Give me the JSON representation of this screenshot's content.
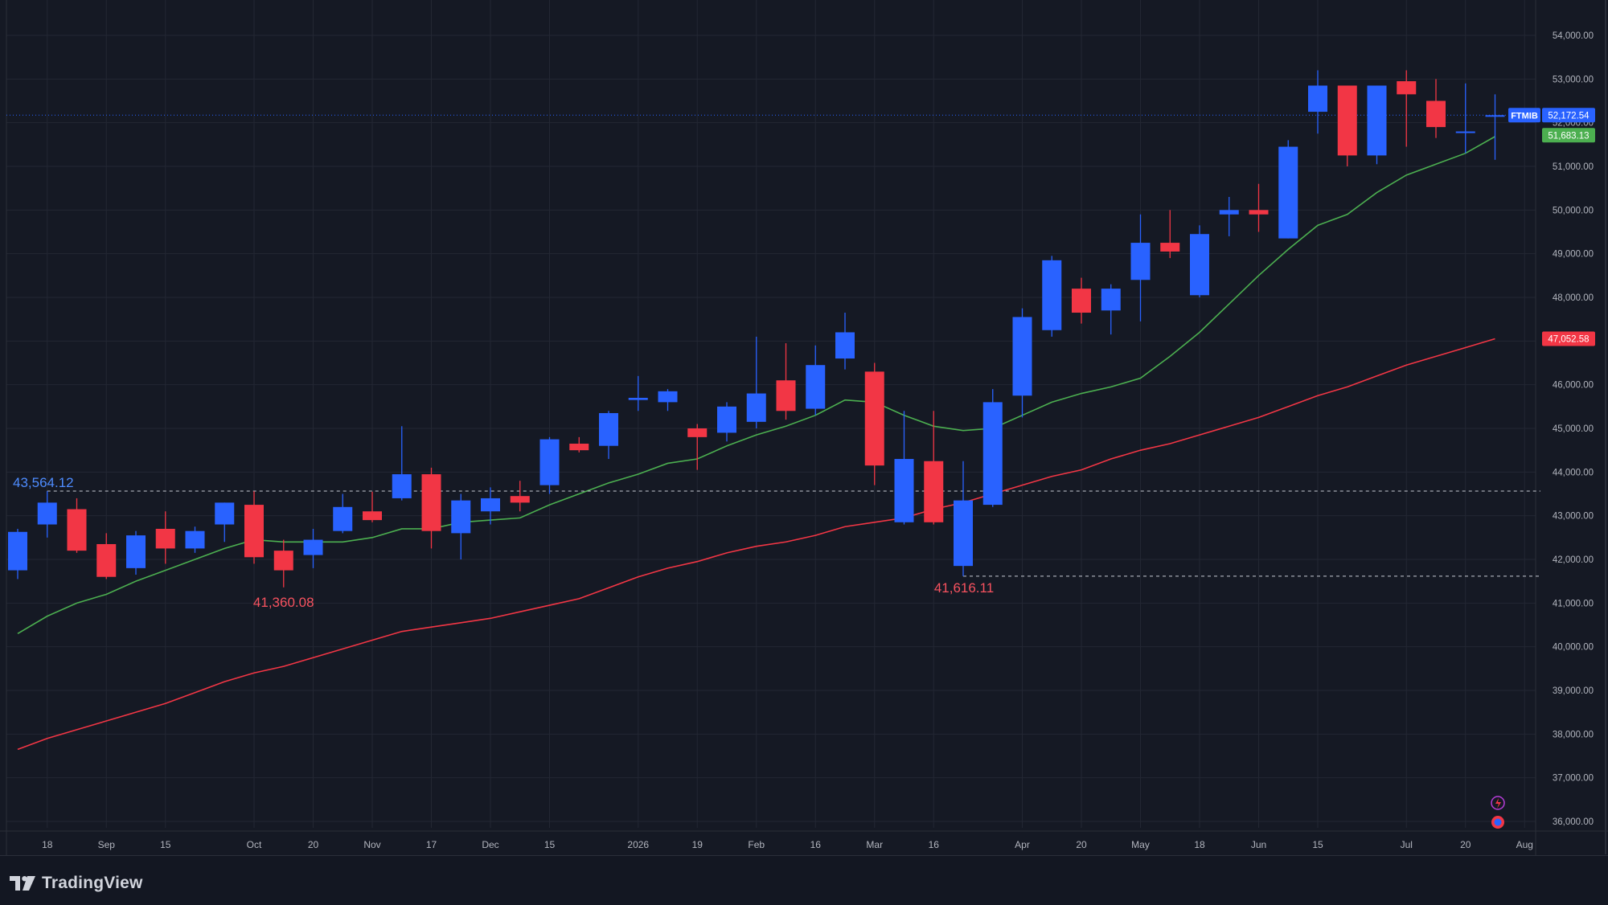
{
  "app": {
    "brand": "TradingView"
  },
  "colors": {
    "background": "#151924",
    "grid": "#232733",
    "up": "#2962ff",
    "down": "#f23645",
    "ma_fast": "#4caf50",
    "ma_slow": "#f23645",
    "axis_text": "#b2b5be",
    "last_price_bg": "#2962ff",
    "ma_fast_tag_bg": "#4caf50",
    "ma_slow_tag_bg": "#f23645"
  },
  "tags": {
    "symbol": "FTMIB",
    "last_price": "52,172.54",
    "ma_fast_value": "51,683.13",
    "ma_slow_value": "47,052.58"
  },
  "annotations": {
    "high_label": "43,564.12",
    "low_label_1": "41,360.08",
    "low_label_2": "41,616.11"
  },
  "chart_data": {
    "type": "candlestick",
    "title": "",
    "symbol": "FTMIB",
    "ylim": [
      35800,
      54600
    ],
    "y_ticks": [
      36000,
      37000,
      38000,
      39000,
      40000,
      41000,
      42000,
      43000,
      44000,
      45000,
      46000,
      47000,
      48000,
      49000,
      50000,
      51000,
      52000,
      53000,
      54000
    ],
    "y_tick_labels": [
      "36,000.00",
      "37,000.00",
      "38,000.00",
      "39,000.00",
      "40,000.00",
      "41,000.00",
      "42,000.00",
      "43,000.00",
      "44,000.00",
      "45,000.00",
      "46,000.00",
      "47,000.00",
      "48,000.00",
      "49,000.00",
      "50,000.00",
      "51,000.00",
      "52,000.00",
      "53,000.00",
      "54,000.00"
    ],
    "x_ticks": [
      {
        "label": "18",
        "i": 1
      },
      {
        "label": "Sep",
        "i": 3
      },
      {
        "label": "15",
        "i": 5
      },
      {
        "label": "Oct",
        "i": 8
      },
      {
        "label": "20",
        "i": 10
      },
      {
        "label": "Nov",
        "i": 12
      },
      {
        "label": "17",
        "i": 14
      },
      {
        "label": "Dec",
        "i": 16
      },
      {
        "label": "15",
        "i": 18
      },
      {
        "label": "2026",
        "i": 21
      },
      {
        "label": "19",
        "i": 23
      },
      {
        "label": "Feb",
        "i": 25
      },
      {
        "label": "16",
        "i": 27
      },
      {
        "label": "Mar",
        "i": 29
      },
      {
        "label": "16",
        "i": 31
      },
      {
        "label": "Apr",
        "i": 34
      },
      {
        "label": "20",
        "i": 36
      },
      {
        "label": "May",
        "i": 38
      },
      {
        "label": "18",
        "i": 40
      },
      {
        "label": "Jun",
        "i": 42
      },
      {
        "label": "15",
        "i": 44
      },
      {
        "label": "Jul",
        "i": 47
      },
      {
        "label": "20",
        "i": 49
      },
      {
        "label": "Aug",
        "i": 51
      }
    ],
    "candles": [
      {
        "o": 41750,
        "h": 42700,
        "l": 41550,
        "c": 42630
      },
      {
        "o": 42800,
        "h": 43564,
        "l": 42500,
        "c": 43300
      },
      {
        "o": 43150,
        "h": 43400,
        "l": 42150,
        "c": 42200
      },
      {
        "o": 42350,
        "h": 42600,
        "l": 41550,
        "c": 41600
      },
      {
        "o": 41800,
        "h": 42650,
        "l": 41650,
        "c": 42550
      },
      {
        "o": 42700,
        "h": 43100,
        "l": 41900,
        "c": 42250
      },
      {
        "o": 42250,
        "h": 42750,
        "l": 42150,
        "c": 42650
      },
      {
        "o": 42800,
        "h": 43300,
        "l": 42400,
        "c": 43300
      },
      {
        "o": 43250,
        "h": 43560,
        "l": 41900,
        "c": 42050
      },
      {
        "o": 42200,
        "h": 42450,
        "l": 41360,
        "c": 41750
      },
      {
        "o": 42100,
        "h": 42700,
        "l": 41800,
        "c": 42450
      },
      {
        "o": 42650,
        "h": 43500,
        "l": 42600,
        "c": 43200
      },
      {
        "o": 43100,
        "h": 43550,
        "l": 42850,
        "c": 42900
      },
      {
        "o": 43400,
        "h": 45050,
        "l": 43350,
        "c": 43950
      },
      {
        "o": 43950,
        "h": 44100,
        "l": 42250,
        "c": 42650
      },
      {
        "o": 42600,
        "h": 43500,
        "l": 42000,
        "c": 43350
      },
      {
        "o": 43100,
        "h": 43650,
        "l": 42800,
        "c": 43400
      },
      {
        "o": 43450,
        "h": 43800,
        "l": 43100,
        "c": 43300
      },
      {
        "o": 43700,
        "h": 44800,
        "l": 43500,
        "c": 44750
      },
      {
        "o": 44650,
        "h": 44800,
        "l": 44450,
        "c": 44500
      },
      {
        "o": 44600,
        "h": 45400,
        "l": 44300,
        "c": 45350
      },
      {
        "o": 45650,
        "h": 46200,
        "l": 45400,
        "c": 45700
      },
      {
        "o": 45600,
        "h": 45900,
        "l": 45400,
        "c": 45850
      },
      {
        "o": 45000,
        "h": 45100,
        "l": 44050,
        "c": 44800
      },
      {
        "o": 44900,
        "h": 45600,
        "l": 44700,
        "c": 45500
      },
      {
        "o": 45150,
        "h": 47100,
        "l": 45000,
        "c": 45800
      },
      {
        "o": 46100,
        "h": 46950,
        "l": 45200,
        "c": 45400
      },
      {
        "o": 45450,
        "h": 46900,
        "l": 45300,
        "c": 46450
      },
      {
        "o": 46600,
        "h": 47650,
        "l": 46350,
        "c": 47200
      },
      {
        "o": 46300,
        "h": 46500,
        "l": 43700,
        "c": 44150
      },
      {
        "o": 42850,
        "h": 45400,
        "l": 42800,
        "c": 44300
      },
      {
        "o": 44250,
        "h": 45400,
        "l": 42800,
        "c": 42850
      },
      {
        "o": 41850,
        "h": 44250,
        "l": 41616,
        "c": 43350
      },
      {
        "o": 43250,
        "h": 45900,
        "l": 43200,
        "c": 45600
      },
      {
        "o": 45750,
        "h": 47750,
        "l": 45250,
        "c": 47550
      },
      {
        "o": 47250,
        "h": 48950,
        "l": 47100,
        "c": 48850
      },
      {
        "o": 48200,
        "h": 48450,
        "l": 47400,
        "c": 47650
      },
      {
        "o": 47700,
        "h": 48300,
        "l": 47150,
        "c": 48200
      },
      {
        "o": 48400,
        "h": 49900,
        "l": 47450,
        "c": 49250
      },
      {
        "o": 49250,
        "h": 50000,
        "l": 48900,
        "c": 49050
      },
      {
        "o": 48050,
        "h": 49650,
        "l": 48000,
        "c": 49450
      },
      {
        "o": 49900,
        "h": 50300,
        "l": 49400,
        "c": 50000
      },
      {
        "o": 50000,
        "h": 50600,
        "l": 49500,
        "c": 49900
      },
      {
        "o": 49350,
        "h": 51600,
        "l": 49350,
        "c": 51450
      },
      {
        "o": 52250,
        "h": 53200,
        "l": 51750,
        "c": 52850
      },
      {
        "o": 52850,
        "h": 52850,
        "l": 51000,
        "c": 51250
      },
      {
        "o": 51250,
        "h": 52850,
        "l": 51050,
        "c": 52850
      },
      {
        "o": 52950,
        "h": 53200,
        "l": 51450,
        "c": 52650
      },
      {
        "o": 52500,
        "h": 53000,
        "l": 51650,
        "c": 51900
      },
      {
        "o": 51800,
        "h": 52900,
        "l": 51300,
        "c": 51800
      },
      {
        "o": 52150,
        "h": 52650,
        "l": 51150,
        "c": 52172.54
      }
    ],
    "series": [
      {
        "values": [
          40300,
          40700,
          41000,
          41200,
          41500,
          41750,
          42000,
          42250,
          42450,
          42400,
          42400,
          42400,
          42500,
          42700,
          42700,
          42850,
          42900,
          42950,
          43250,
          43500,
          43750,
          43950,
          44200,
          44300,
          44600,
          44850,
          45050,
          45300,
          45650,
          45600,
          45300,
          45050,
          44950,
          45000,
          45300,
          45600,
          45800,
          45950,
          46150,
          46650,
          47200,
          47850,
          48500,
          49100,
          49650,
          49900,
          50400,
          50800,
          51050,
          51300,
          51683.13
        ]
      },
      {
        "values": [
          37650,
          37900,
          38100,
          38300,
          38500,
          38700,
          38950,
          39200,
          39400,
          39550,
          39750,
          39950,
          40150,
          40350,
          40450,
          40550,
          40650,
          40800,
          40950,
          41100,
          41350,
          41600,
          41800,
          41950,
          42150,
          42300,
          42400,
          42550,
          42750,
          42850,
          42950,
          43150,
          43300,
          43500,
          43700,
          43900,
          44050,
          44300,
          44500,
          44650,
          44850,
          45050,
          45250,
          45500,
          45750,
          45950,
          46200,
          46450,
          46650,
          46850,
          47052.58
        ]
      }
    ],
    "legend": "none",
    "grid": true
  }
}
